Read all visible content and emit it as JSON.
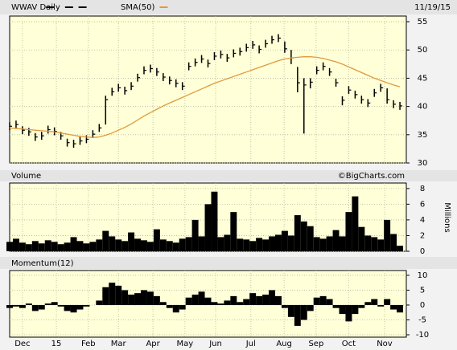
{
  "chart_data": [
    {
      "type": "ohlc",
      "date": "11/19/15",
      "x": [
        0,
        1,
        2,
        3,
        4,
        5,
        6,
        7,
        8,
        9,
        10,
        11,
        12,
        13,
        14,
        15,
        16,
        17,
        18,
        19,
        20,
        21,
        22,
        23,
        24,
        25,
        26,
        27,
        28,
        29,
        30,
        31,
        32,
        33,
        34,
        35,
        36,
        37,
        38,
        39,
        40,
        41,
        42,
        43,
        44,
        45,
        46,
        47,
        48,
        49,
        50,
        51,
        52,
        53,
        54,
        55,
        56,
        57,
        58,
        59,
        60,
        61
      ],
      "xlim": [
        0,
        62
      ],
      "xticks": [
        {
          "value": 2.0,
          "label": "Dec"
        },
        {
          "value": 7.3,
          "label": "15"
        },
        {
          "value": 12.3,
          "label": "Feb"
        },
        {
          "value": 17.0,
          "label": "Mar"
        },
        {
          "value": 22.4,
          "label": "Apr"
        },
        {
          "value": 27.4,
          "label": "May"
        },
        {
          "value": 32.2,
          "label": "Jun"
        },
        {
          "value": 37.7,
          "label": "Jul"
        },
        {
          "value": 42.9,
          "label": "Aug"
        },
        {
          "value": 47.9,
          "label": "Sep"
        },
        {
          "value": 53.0,
          "label": "Oct"
        },
        {
          "value": 58.6,
          "label": "Nov"
        }
      ],
      "ylim": [
        30,
        56
      ],
      "yticks": [
        30,
        35,
        40,
        45,
        50,
        55
      ],
      "grid": true,
      "series": [
        {
          "name": "WWAV Daily",
          "color": "#000000",
          "high": [
            37.2,
            37.5,
            36.5,
            36.2,
            35.3,
            35.5,
            36.6,
            36.3,
            35.5,
            34.3,
            34.1,
            34.6,
            34.9,
            35.8,
            36.9,
            41.9,
            43.3,
            44,
            43.5,
            44.3,
            45.8,
            47.1,
            47.4,
            46.8,
            45.9,
            45.3,
            44.8,
            44.3,
            47.8,
            48.5,
            49.1,
            48.3,
            49.6,
            49.9,
            49.3,
            50.1,
            50.4,
            51.1,
            51.6,
            50.8,
            51.8,
            52.5,
            52.8,
            51.5,
            50,
            47,
            45,
            45,
            47.1,
            47.8,
            46.8,
            44.9,
            41.8,
            43.6,
            42.8,
            41.9,
            41.3,
            43.1,
            44,
            43.2,
            41.1,
            40.8
          ],
          "low": [
            35.8,
            36.1,
            35.1,
            34.8,
            33.9,
            34.1,
            35.2,
            34.9,
            34.1,
            32.9,
            32.7,
            33.2,
            33.5,
            34.4,
            35.5,
            36.8,
            41.9,
            42.6,
            42.1,
            42.9,
            44.4,
            45.7,
            46,
            45.4,
            44.5,
            43.9,
            43.4,
            42.9,
            46.4,
            47.1,
            47.7,
            46.9,
            48.2,
            48.5,
            47.9,
            48.7,
            49,
            49.7,
            50.2,
            49.4,
            50.4,
            51.1,
            51.4,
            49.5,
            47.5,
            42.5,
            35.2,
            43.2,
            45.7,
            46.4,
            45.4,
            43.5,
            40.2,
            42.2,
            41.4,
            40.5,
            39.9,
            41.7,
            42.6,
            40.5,
            39.7,
            39.4
          ],
          "close": [
            36.5,
            36.8,
            35.8,
            35.5,
            34.6,
            34.8,
            35.9,
            35.6,
            34.8,
            33.6,
            33.4,
            33.9,
            34.2,
            35.1,
            36.2,
            41.2,
            42.6,
            43.3,
            42.8,
            43.6,
            45.1,
            46.4,
            46.7,
            46.1,
            45.2,
            44.6,
            44.1,
            43.6,
            47.1,
            47.8,
            48.4,
            47.6,
            48.9,
            49.2,
            48.6,
            49.4,
            49.7,
            50.4,
            50.9,
            50.1,
            51.1,
            51.8,
            52.1,
            50.2,
            48.6,
            44.2,
            43.8,
            44.3,
            46.4,
            47.1,
            46.1,
            44.2,
            41.1,
            42.9,
            42.1,
            41.2,
            40.6,
            42.4,
            43.3,
            41.2,
            40.4,
            40.1
          ]
        },
        {
          "name": "SMA(50)",
          "color": "#e09a3c",
          "values": [
            36.2,
            36.1,
            36,
            35.9,
            35.8,
            35.7,
            35.6,
            35.5,
            35.3,
            35.1,
            34.9,
            34.7,
            34.6,
            34.5,
            34.6,
            34.9,
            35.3,
            35.8,
            36.3,
            36.9,
            37.6,
            38.3,
            38.9,
            39.5,
            40.1,
            40.6,
            41.1,
            41.6,
            42.1,
            42.6,
            43.1,
            43.6,
            44.1,
            44.5,
            44.9,
            45.3,
            45.7,
            46.1,
            46.5,
            46.9,
            47.3,
            47.7,
            48.1,
            48.4,
            48.6,
            48.7,
            48.8,
            48.8,
            48.7,
            48.5,
            48.2,
            47.9,
            47.5,
            47,
            46.5,
            46,
            45.5,
            45,
            44.6,
            44.2,
            43.8,
            43.5
          ]
        }
      ]
    },
    {
      "type": "bar",
      "title": "Volume",
      "credit": "©BigCharts.com",
      "y_label": "Millions",
      "color": "#000000",
      "ylim": [
        0,
        8.7
      ],
      "yticks": [
        0,
        2,
        4,
        6,
        8
      ],
      "values": [
        1.2,
        1.6,
        1.1,
        0.9,
        1.3,
        1.0,
        1.4,
        1.2,
        0.9,
        1.1,
        1.8,
        1.3,
        1.0,
        1.2,
        1.5,
        2.6,
        1.9,
        1.5,
        1.3,
        2.4,
        1.6,
        1.4,
        1.2,
        2.8,
        1.5,
        1.3,
        1.1,
        1.6,
        1.8,
        4.0,
        1.9,
        6.0,
        7.6,
        1.8,
        2.1,
        5.0,
        1.6,
        1.5,
        1.3,
        1.7,
        1.5,
        1.9,
        2.1,
        2.6,
        2.0,
        4.6,
        3.8,
        3.2,
        1.8,
        1.6,
        1.9,
        2.7,
        1.9,
        5.0,
        7.0,
        3.1,
        2.0,
        1.8,
        1.5,
        4.0,
        2.2,
        0.7
      ]
    },
    {
      "type": "bar",
      "title": "Momentum(12)",
      "color": "#000000",
      "ylim": [
        -10.8,
        11.6
      ],
      "yticks": [
        10,
        5,
        0,
        -5,
        -10
      ],
      "values": [
        -1,
        -0.5,
        -1,
        0.5,
        -2,
        -1.5,
        0.5,
        1,
        -0.5,
        -2,
        -2.5,
        -1.5,
        -0.5,
        0,
        1.5,
        6,
        7.5,
        6.5,
        5,
        3.5,
        4,
        5,
        4.5,
        3,
        1,
        -1,
        -2.5,
        -1.5,
        2.5,
        3.5,
        4.5,
        2.5,
        1,
        0.5,
        1.5,
        3,
        1,
        2,
        4,
        3,
        3.5,
        5,
        3,
        -1,
        -4,
        -7,
        -5,
        -2,
        2.5,
        3,
        2,
        -1,
        -3,
        -5.5,
        -3,
        -1,
        1,
        2,
        -0.5,
        2,
        -1.5,
        -2.5
      ]
    }
  ]
}
